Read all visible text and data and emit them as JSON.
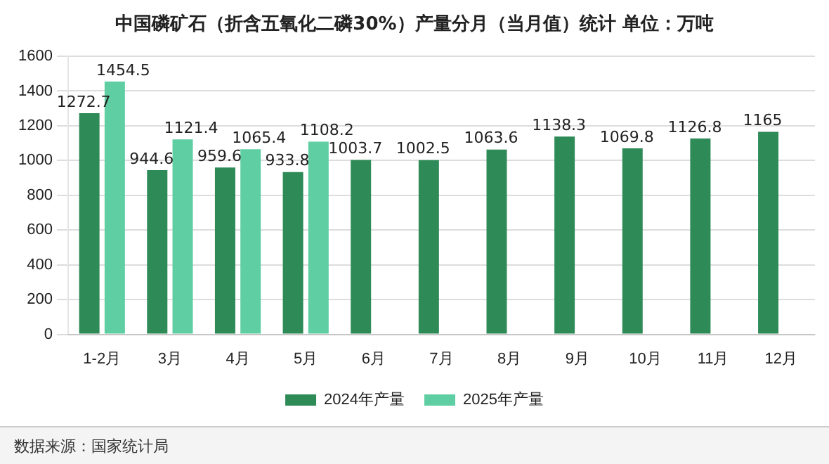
{
  "chart_data": {
    "type": "bar",
    "title": "中国磷矿石（折含五氧化二磷30%）产量分月（当月值）统计 单位：万吨",
    "categories": [
      "1-2月",
      "3月",
      "4月",
      "5月",
      "6月",
      "7月",
      "8月",
      "9月",
      "10月",
      "11月",
      "12月"
    ],
    "series": [
      {
        "name": "2024年产量",
        "color": "#2e8b57",
        "values": [
          1272.7,
          944.6,
          959.6,
          933.8,
          1003.7,
          1002.5,
          1063.6,
          1138.3,
          1069.8,
          1126.8,
          1165
        ]
      },
      {
        "name": "2025年产量",
        "color": "#5fcfa3",
        "values": [
          1454.5,
          1121.4,
          1065.4,
          1108.2,
          null,
          null,
          null,
          null,
          null,
          null,
          null
        ]
      }
    ],
    "ylim": [
      0,
      1600
    ],
    "yticks": [
      0,
      200,
      400,
      600,
      800,
      1000,
      1200,
      1400,
      1600
    ],
    "grid": "y",
    "legend": "bottom",
    "data_labels": true,
    "annotations": [
      "数据来源：国家统计局"
    ]
  }
}
